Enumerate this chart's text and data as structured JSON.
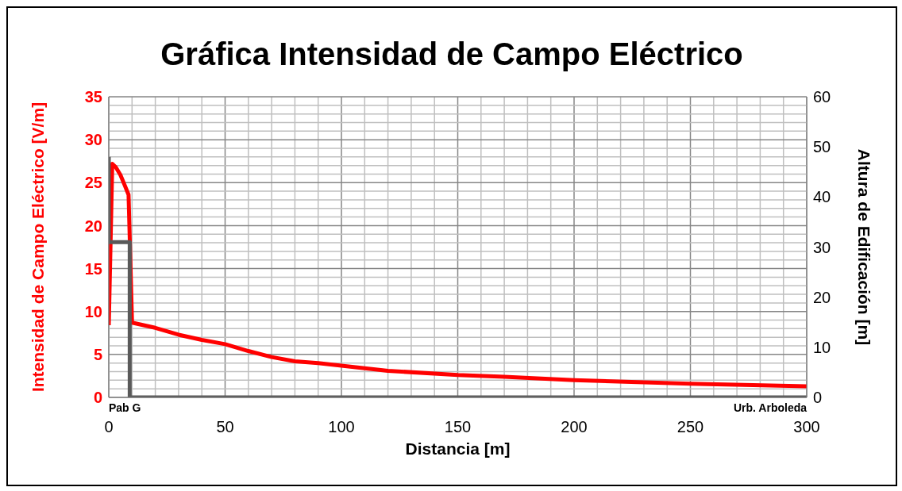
{
  "chart_data": {
    "type": "line",
    "title": "Gráfica Intensidad de Campo Eléctrico",
    "xlabel": "Distancia [m]",
    "ylabel": "Intensidad de Campo Eléctrico [V/m]",
    "y2label": "Altura de Edificación [m]",
    "xlim": [
      0,
      300
    ],
    "ylim": [
      0,
      35
    ],
    "y2lim": [
      0,
      60
    ],
    "xticks": [
      0,
      {
        "value": 10,
        "label": null
      },
      {
        "value": 20,
        "label": null
      },
      {
        "value": 30,
        "label": null
      },
      {
        "value": 40,
        "label": null
      },
      50,
      {
        "value": 60,
        "label": null
      },
      {
        "value": 70,
        "label": null
      },
      {
        "value": 80,
        "label": null
      },
      {
        "value": 90,
        "label": null
      },
      100,
      {
        "value": 110,
        "label": null
      },
      {
        "value": 120,
        "label": null
      },
      {
        "value": 130,
        "label": null
      },
      {
        "value": 140,
        "label": null
      },
      150,
      {
        "value": 160,
        "label": null
      },
      {
        "value": 170,
        "label": null
      },
      {
        "value": 180,
        "label": null
      },
      {
        "value": 190,
        "label": null
      },
      200,
      {
        "value": 210,
        "label": null
      },
      {
        "value": 220,
        "label": null
      },
      {
        "value": 230,
        "label": null
      },
      {
        "value": 240,
        "label": null
      },
      250,
      {
        "value": 260,
        "label": null
      },
      {
        "value": 270,
        "label": null
      },
      {
        "value": 280,
        "label": null
      },
      {
        "value": 290,
        "label": null
      },
      300
    ],
    "yticks": [
      0,
      {
        "value": 1,
        "label": null
      },
      {
        "value": 2,
        "label": null
      },
      {
        "value": 3,
        "label": null
      },
      {
        "value": 4,
        "label": null
      },
      5,
      {
        "value": 6,
        "label": null
      },
      {
        "value": 7,
        "label": null
      },
      {
        "value": 8,
        "label": null
      },
      {
        "value": 9,
        "label": null
      },
      10,
      {
        "value": 11,
        "label": null
      },
      {
        "value": 12,
        "label": null
      },
      {
        "value": 13,
        "label": null
      },
      {
        "value": 14,
        "label": null
      },
      15,
      {
        "value": 16,
        "label": null
      },
      {
        "value": 17,
        "label": null
      },
      {
        "value": 18,
        "label": null
      },
      {
        "value": 19,
        "label": null
      },
      20,
      {
        "value": 21,
        "label": null
      },
      {
        "value": 22,
        "label": null
      },
      {
        "value": 23,
        "label": null
      },
      {
        "value": 24,
        "label": null
      },
      25,
      {
        "value": 26,
        "label": null
      },
      {
        "value": 27,
        "label": null
      },
      {
        "value": 28,
        "label": null
      },
      {
        "value": 29,
        "label": null
      },
      30,
      {
        "value": 31,
        "label": null
      },
      {
        "value": 32,
        "label": null
      },
      {
        "value": 33,
        "label": null
      },
      {
        "value": 34,
        "label": null
      },
      35
    ],
    "y2ticks": [
      0,
      10,
      20,
      30,
      40,
      50,
      60
    ],
    "grid": true,
    "marker": "none",
    "line_style": "solid",
    "annotations": [
      "Pab G",
      "Urb. Arboleda"
    ],
    "series": [
      {
        "color": "#ff0000",
        "x": [
          0,
          1.5,
          3,
          5,
          7,
          8.5,
          10,
          20,
          30,
          40,
          50,
          60,
          70,
          80,
          90,
          100,
          120,
          150,
          170,
          200,
          250,
          300
        ],
        "values": [
          8.4,
          27.2,
          26.8,
          25.9,
          24.6,
          23.6,
          8.7,
          8.1,
          7.3,
          6.7,
          6.2,
          5.4,
          4.7,
          4.2,
          4,
          3.7,
          3.1,
          2.6,
          2.4,
          2,
          1.6,
          1.3
        ]
      },
      {
        "color": "#595959",
        "axis": "y2",
        "x": [
          0,
          0,
          9,
          9,
          300
        ],
        "values": [
          48,
          31,
          31,
          0,
          0
        ]
      }
    ]
  }
}
